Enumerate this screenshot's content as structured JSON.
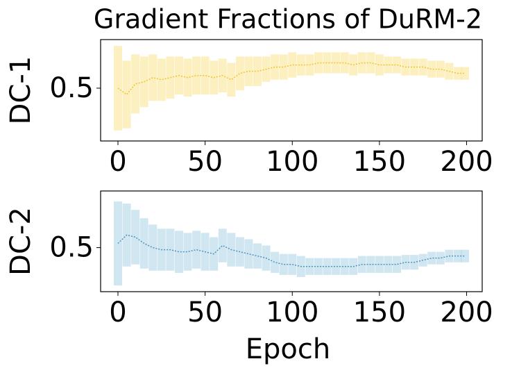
{
  "chart_data": [
    {
      "type": "line",
      "title": "Gradient Fractions of DuRM-2",
      "y_label": "DC-1",
      "color": "#f2c42c",
      "band_color": "#fbe9a6",
      "x": [
        0,
        5,
        10,
        15,
        20,
        25,
        30,
        35,
        40,
        45,
        50,
        55,
        60,
        65,
        70,
        75,
        80,
        85,
        90,
        95,
        100,
        105,
        110,
        115,
        120,
        125,
        130,
        135,
        140,
        145,
        150,
        155,
        160,
        165,
        170,
        175,
        180,
        185,
        190,
        195,
        199
      ],
      "values": [
        0.5,
        0.47,
        0.52,
        0.53,
        0.55,
        0.54,
        0.55,
        0.56,
        0.55,
        0.56,
        0.56,
        0.55,
        0.56,
        0.54,
        0.57,
        0.58,
        0.58,
        0.59,
        0.6,
        0.6,
        0.61,
        0.61,
        0.61,
        0.62,
        0.62,
        0.62,
        0.62,
        0.61,
        0.62,
        0.62,
        0.61,
        0.61,
        0.61,
        0.6,
        0.6,
        0.6,
        0.59,
        0.59,
        0.58,
        0.57,
        0.57
      ],
      "errors": [
        0.2,
        0.16,
        0.14,
        0.12,
        0.11,
        0.1,
        0.1,
        0.09,
        0.09,
        0.09,
        0.09,
        0.08,
        0.08,
        0.08,
        0.08,
        0.07,
        0.07,
        0.06,
        0.06,
        0.06,
        0.06,
        0.05,
        0.05,
        0.05,
        0.05,
        0.05,
        0.05,
        0.05,
        0.05,
        0.05,
        0.05,
        0.04,
        0.04,
        0.04,
        0.04,
        0.04,
        0.04,
        0.04,
        0.04,
        0.03,
        0.03
      ],
      "xlim": [
        -9.95,
        208.95
      ],
      "ylim": [
        0.25,
        0.73
      ],
      "xticks": [
        0,
        50,
        100,
        150,
        200
      ],
      "yticks": [
        0.5
      ]
    },
    {
      "type": "line",
      "x_label": "Epoch",
      "y_label": "DC-2",
      "color": "#4f93c2",
      "band_color": "#bcdbea",
      "x": [
        0,
        5,
        10,
        15,
        20,
        25,
        30,
        35,
        40,
        45,
        50,
        55,
        60,
        65,
        70,
        75,
        80,
        85,
        90,
        95,
        100,
        105,
        110,
        115,
        120,
        125,
        130,
        135,
        140,
        145,
        150,
        155,
        160,
        165,
        170,
        175,
        180,
        185,
        190,
        195,
        199
      ],
      "values": [
        0.52,
        0.56,
        0.55,
        0.52,
        0.5,
        0.49,
        0.49,
        0.48,
        0.48,
        0.49,
        0.48,
        0.47,
        0.51,
        0.49,
        0.48,
        0.47,
        0.46,
        0.45,
        0.43,
        0.42,
        0.42,
        0.41,
        0.41,
        0.41,
        0.41,
        0.41,
        0.41,
        0.41,
        0.42,
        0.42,
        0.42,
        0.42,
        0.42,
        0.43,
        0.43,
        0.44,
        0.45,
        0.45,
        0.46,
        0.46,
        0.46
      ],
      "errors": [
        0.2,
        0.15,
        0.13,
        0.12,
        0.11,
        0.1,
        0.1,
        0.1,
        0.09,
        0.09,
        0.09,
        0.08,
        0.08,
        0.08,
        0.07,
        0.07,
        0.06,
        0.06,
        0.05,
        0.05,
        0.05,
        0.05,
        0.04,
        0.04,
        0.04,
        0.04,
        0.04,
        0.04,
        0.04,
        0.04,
        0.04,
        0.04,
        0.04,
        0.035,
        0.035,
        0.03,
        0.03,
        0.03,
        0.03,
        0.03,
        0.03
      ],
      "xlim": [
        -9.95,
        208.95
      ],
      "ylim": [
        0.29,
        0.77
      ],
      "xticks": [
        0,
        50,
        100,
        150,
        200
      ],
      "yticks": [
        0.5
      ]
    }
  ]
}
